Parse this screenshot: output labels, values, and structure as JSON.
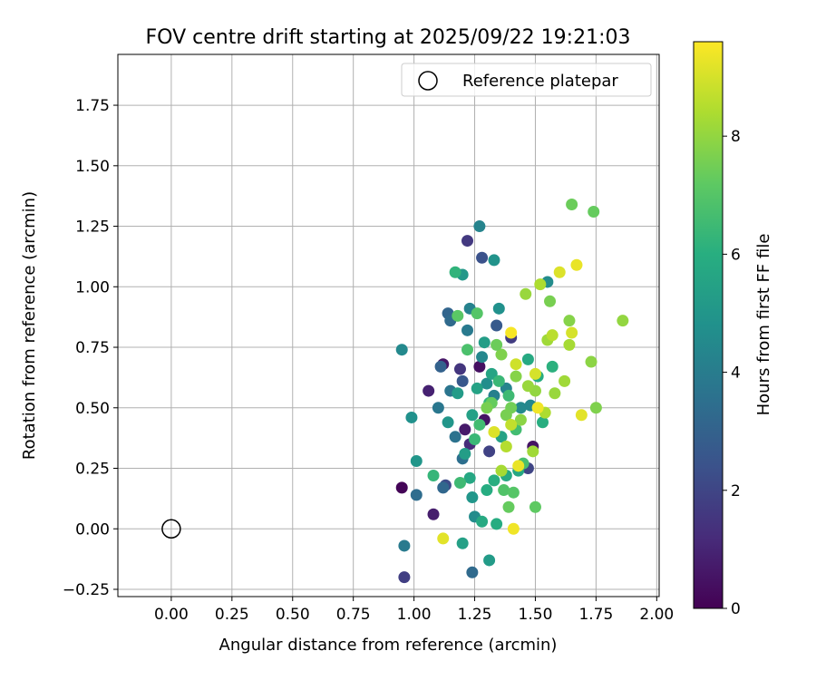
{
  "chart_data": {
    "type": "scatter",
    "title": "FOV centre drift starting at 2025/09/22 19:21:03",
    "xlabel": "Angular distance from reference (arcmin)",
    "ylabel": "Rotation from reference (arcmin)",
    "xlim": [
      -0.22,
      2.01
    ],
    "ylim": [
      -0.28,
      1.96
    ],
    "grid": true,
    "x_ticks": [
      0.0,
      0.25,
      0.5,
      0.75,
      1.0,
      1.25,
      1.5,
      1.75,
      2.0
    ],
    "x_tick_labels": [
      "0.00",
      "0.25",
      "0.50",
      "0.75",
      "1.00",
      "1.25",
      "1.50",
      "1.75",
      "2.00"
    ],
    "y_ticks": [
      -0.25,
      0.0,
      0.25,
      0.5,
      0.75,
      1.0,
      1.25,
      1.5,
      1.75
    ],
    "y_tick_labels": [
      "−0.25",
      "0.00",
      "0.25",
      "0.50",
      "0.75",
      "1.00",
      "1.25",
      "1.50",
      "1.75"
    ],
    "colorbar": {
      "label": "Hours from first FF file",
      "colormap": "viridis",
      "range": [
        0,
        9.6
      ],
      "ticks": [
        0,
        2,
        4,
        6,
        8
      ],
      "tick_labels": [
        "0",
        "2",
        "4",
        "6",
        "8"
      ]
    },
    "legend": {
      "position": "top-right",
      "entries": [
        "Reference platepar"
      ]
    },
    "reference_point": {
      "name": "Reference platepar",
      "x": 0.0,
      "y": 0.0
    },
    "points": [
      {
        "x": 0.95,
        "y": 0.17,
        "h": 0.1
      },
      {
        "x": 1.08,
        "y": 0.06,
        "h": 0.8
      },
      {
        "x": 1.06,
        "y": 0.57,
        "h": 0.9
      },
      {
        "x": 1.12,
        "y": 0.68,
        "h": 0.6
      },
      {
        "x": 1.21,
        "y": 0.41,
        "h": 0.7
      },
      {
        "x": 1.27,
        "y": 0.67,
        "h": 0.4
      },
      {
        "x": 1.29,
        "y": 0.45,
        "h": 0.5
      },
      {
        "x": 1.49,
        "y": 0.34,
        "h": 0.5
      },
      {
        "x": 1.22,
        "y": 1.19,
        "h": 1.6
      },
      {
        "x": 1.28,
        "y": 1.12,
        "h": 2.4
      },
      {
        "x": 1.19,
        "y": 0.66,
        "h": 1.5
      },
      {
        "x": 1.23,
        "y": 0.35,
        "h": 1.2
      },
      {
        "x": 1.31,
        "y": 0.32,
        "h": 1.9
      },
      {
        "x": 1.4,
        "y": 0.79,
        "h": 1.7
      },
      {
        "x": 1.47,
        "y": 0.25,
        "h": 2.0
      },
      {
        "x": 1.2,
        "y": 0.61,
        "h": 2.6
      },
      {
        "x": 1.13,
        "y": 0.18,
        "h": 2.2
      },
      {
        "x": 0.96,
        "y": -0.2,
        "h": 1.8
      },
      {
        "x": 1.34,
        "y": 0.84,
        "h": 2.7
      },
      {
        "x": 1.14,
        "y": 0.89,
        "h": 3.1
      },
      {
        "x": 1.15,
        "y": 0.86,
        "h": 3.3
      },
      {
        "x": 1.11,
        "y": 0.67,
        "h": 3.0
      },
      {
        "x": 1.24,
        "y": -0.18,
        "h": 3.3
      },
      {
        "x": 1.01,
        "y": 0.14,
        "h": 3.4
      },
      {
        "x": 1.12,
        "y": 0.17,
        "h": 3.2
      },
      {
        "x": 0.96,
        "y": -0.07,
        "h": 3.9
      },
      {
        "x": 1.17,
        "y": 0.38,
        "h": 3.6
      },
      {
        "x": 1.2,
        "y": 0.29,
        "h": 3.5
      },
      {
        "x": 1.1,
        "y": 0.5,
        "h": 3.8
      },
      {
        "x": 1.15,
        "y": 0.57,
        "h": 3.7
      },
      {
        "x": 1.22,
        "y": 0.82,
        "h": 3.9
      },
      {
        "x": 1.27,
        "y": 1.25,
        "h": 4.3
      },
      {
        "x": 0.95,
        "y": 0.74,
        "h": 4.5
      },
      {
        "x": 0.99,
        "y": 0.46,
        "h": 4.8
      },
      {
        "x": 1.01,
        "y": 0.28,
        "h": 5.0
      },
      {
        "x": 1.25,
        "y": 0.05,
        "h": 4.6
      },
      {
        "x": 1.23,
        "y": 0.91,
        "h": 4.2
      },
      {
        "x": 1.28,
        "y": 0.71,
        "h": 4.4
      },
      {
        "x": 1.3,
        "y": 0.6,
        "h": 4.7
      },
      {
        "x": 1.33,
        "y": 0.55,
        "h": 4.1
      },
      {
        "x": 1.38,
        "y": 0.58,
        "h": 4.3
      },
      {
        "x": 1.44,
        "y": 0.5,
        "h": 4.5
      },
      {
        "x": 1.48,
        "y": 0.51,
        "h": 4.4
      },
      {
        "x": 1.55,
        "y": 1.02,
        "h": 4.6
      },
      {
        "x": 1.33,
        "y": 1.11,
        "h": 4.9
      },
      {
        "x": 1.35,
        "y": 0.91,
        "h": 4.8
      },
      {
        "x": 1.2,
        "y": 1.05,
        "h": 5.1
      },
      {
        "x": 1.21,
        "y": 0.31,
        "h": 5.3
      },
      {
        "x": 1.24,
        "y": 0.13,
        "h": 5.0
      },
      {
        "x": 1.2,
        "y": -0.06,
        "h": 5.4
      },
      {
        "x": 1.31,
        "y": -0.13,
        "h": 5.2
      },
      {
        "x": 1.14,
        "y": 0.44,
        "h": 5.0
      },
      {
        "x": 1.18,
        "y": 0.56,
        "h": 5.2
      },
      {
        "x": 1.24,
        "y": 0.47,
        "h": 5.4
      },
      {
        "x": 1.26,
        "y": 0.58,
        "h": 5.5
      },
      {
        "x": 1.29,
        "y": 0.77,
        "h": 5.3
      },
      {
        "x": 1.32,
        "y": 0.64,
        "h": 5.6
      },
      {
        "x": 1.36,
        "y": 0.38,
        "h": 5.5
      },
      {
        "x": 1.34,
        "y": 0.02,
        "h": 5.9
      },
      {
        "x": 1.28,
        "y": 0.03,
        "h": 5.8
      },
      {
        "x": 1.23,
        "y": 0.21,
        "h": 5.7
      },
      {
        "x": 1.3,
        "y": 0.16,
        "h": 5.9
      },
      {
        "x": 1.33,
        "y": 0.2,
        "h": 6.0
      },
      {
        "x": 1.38,
        "y": 0.22,
        "h": 5.8
      },
      {
        "x": 1.43,
        "y": 0.24,
        "h": 5.7
      },
      {
        "x": 1.53,
        "y": 0.44,
        "h": 6.0
      },
      {
        "x": 1.51,
        "y": 0.63,
        "h": 5.9
      },
      {
        "x": 1.47,
        "y": 0.7,
        "h": 5.8
      },
      {
        "x": 1.57,
        "y": 0.67,
        "h": 6.1
      },
      {
        "x": 1.17,
        "y": 1.06,
        "h": 6.2
      },
      {
        "x": 1.08,
        "y": 0.22,
        "h": 6.3
      },
      {
        "x": 1.19,
        "y": 0.19,
        "h": 6.5
      },
      {
        "x": 1.25,
        "y": 0.37,
        "h": 6.4
      },
      {
        "x": 1.27,
        "y": 0.43,
        "h": 6.6
      },
      {
        "x": 1.31,
        "y": 0.52,
        "h": 6.3
      },
      {
        "x": 1.35,
        "y": 0.61,
        "h": 6.4
      },
      {
        "x": 1.39,
        "y": 0.55,
        "h": 6.5
      },
      {
        "x": 1.42,
        "y": 0.41,
        "h": 6.6
      },
      {
        "x": 1.45,
        "y": 0.27,
        "h": 6.7
      },
      {
        "x": 1.22,
        "y": 0.74,
        "h": 6.8
      },
      {
        "x": 1.26,
        "y": 0.89,
        "h": 7.0
      },
      {
        "x": 1.18,
        "y": 0.88,
        "h": 7.1
      },
      {
        "x": 1.37,
        "y": 0.16,
        "h": 6.9
      },
      {
        "x": 1.41,
        "y": 0.15,
        "h": 7.0
      },
      {
        "x": 1.5,
        "y": 0.09,
        "h": 7.2
      },
      {
        "x": 1.39,
        "y": 0.09,
        "h": 7.3
      },
      {
        "x": 1.65,
        "y": 1.34,
        "h": 7.4
      },
      {
        "x": 1.74,
        "y": 1.31,
        "h": 7.3
      },
      {
        "x": 1.56,
        "y": 0.94,
        "h": 7.6
      },
      {
        "x": 1.64,
        "y": 0.86,
        "h": 7.8
      },
      {
        "x": 1.73,
        "y": 0.69,
        "h": 7.9
      },
      {
        "x": 1.75,
        "y": 0.5,
        "h": 7.7
      },
      {
        "x": 1.86,
        "y": 0.86,
        "h": 8.0
      },
      {
        "x": 1.46,
        "y": 0.97,
        "h": 8.1
      },
      {
        "x": 1.52,
        "y": 1.01,
        "h": 8.4
      },
      {
        "x": 1.55,
        "y": 0.78,
        "h": 8.2
      },
      {
        "x": 1.57,
        "y": 0.8,
        "h": 8.6
      },
      {
        "x": 1.64,
        "y": 0.76,
        "h": 8.3
      },
      {
        "x": 1.62,
        "y": 0.61,
        "h": 8.2
      },
      {
        "x": 1.58,
        "y": 0.56,
        "h": 8.1
      },
      {
        "x": 1.54,
        "y": 0.48,
        "h": 8.4
      },
      {
        "x": 1.5,
        "y": 0.57,
        "h": 8.0
      },
      {
        "x": 1.47,
        "y": 0.59,
        "h": 8.1
      },
      {
        "x": 1.44,
        "y": 0.45,
        "h": 7.9
      },
      {
        "x": 1.42,
        "y": 0.63,
        "h": 7.8
      },
      {
        "x": 1.4,
        "y": 0.5,
        "h": 7.5
      },
      {
        "x": 1.38,
        "y": 0.47,
        "h": 7.6
      },
      {
        "x": 1.36,
        "y": 0.72,
        "h": 7.7
      },
      {
        "x": 1.34,
        "y": 0.76,
        "h": 7.4
      },
      {
        "x": 1.32,
        "y": 0.52,
        "h": 7.3
      },
      {
        "x": 1.3,
        "y": 0.5,
        "h": 7.6
      },
      {
        "x": 1.36,
        "y": 0.24,
        "h": 8.3
      },
      {
        "x": 1.38,
        "y": 0.34,
        "h": 8.5
      },
      {
        "x": 1.49,
        "y": 0.32,
        "h": 8.2
      },
      {
        "x": 1.4,
        "y": 0.43,
        "h": 8.7
      },
      {
        "x": 1.6,
        "y": 1.06,
        "h": 9.1
      },
      {
        "x": 1.67,
        "y": 1.09,
        "h": 9.3
      },
      {
        "x": 1.65,
        "y": 0.81,
        "h": 9.0
      },
      {
        "x": 1.69,
        "y": 0.47,
        "h": 9.2
      },
      {
        "x": 1.51,
        "y": 0.5,
        "h": 9.4
      },
      {
        "x": 1.5,
        "y": 0.64,
        "h": 9.0
      },
      {
        "x": 1.42,
        "y": 0.68,
        "h": 8.9
      },
      {
        "x": 1.4,
        "y": 0.81,
        "h": 9.5
      },
      {
        "x": 1.43,
        "y": 0.26,
        "h": 9.3
      },
      {
        "x": 1.41,
        "y": 0.0,
        "h": 9.4
      },
      {
        "x": 1.12,
        "y": -0.04,
        "h": 9.2
      },
      {
        "x": 1.33,
        "y": 0.4,
        "h": 9.1
      }
    ]
  }
}
